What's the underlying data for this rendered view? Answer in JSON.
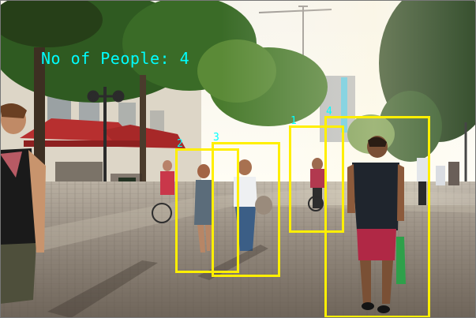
{
  "overlay": {
    "count_text": "No of People: 4",
    "label_color": "#00ffff",
    "box_color": "#ffef00"
  },
  "detections": [
    {
      "id": "1"
    },
    {
      "id": "2"
    },
    {
      "id": "3"
    },
    {
      "id": "4"
    }
  ]
}
